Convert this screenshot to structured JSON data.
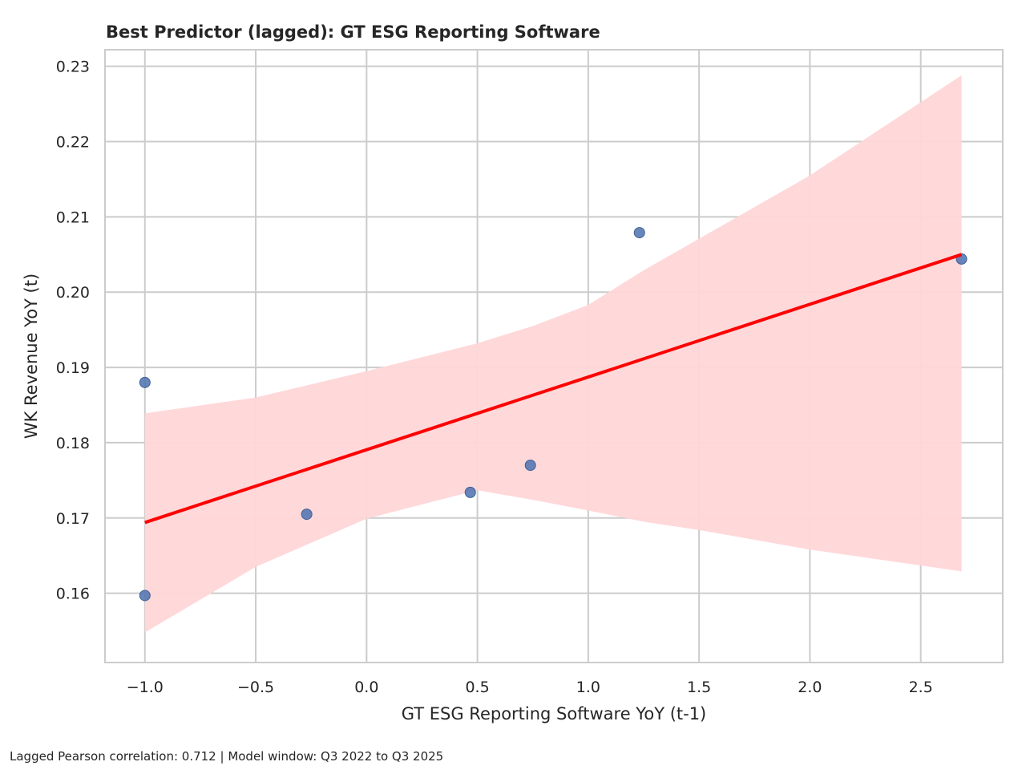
{
  "chart_data": {
    "type": "scatter",
    "title": "Best Predictor (lagged): GT ESG Reporting Software",
    "xlabel": "GT ESG Reporting Software YoY (t-1)",
    "ylabel": "WK Revenue YoY (t)",
    "xlim": [
      -1.18,
      2.87
    ],
    "ylim": [
      0.1508,
      0.2322
    ],
    "xticks": [
      -1.0,
      -0.5,
      0.0,
      0.5,
      1.0,
      1.5,
      2.0,
      2.5
    ],
    "xtick_labels": [
      "−1.0",
      "−0.5",
      "0.0",
      "0.5",
      "1.0",
      "1.5",
      "2.0",
      "2.5"
    ],
    "yticks": [
      0.16,
      0.17,
      0.18,
      0.19,
      0.2,
      0.21,
      0.22,
      0.23
    ],
    "ytick_labels": [
      "0.16",
      "0.17",
      "0.18",
      "0.19",
      "0.20",
      "0.21",
      "0.22",
      "0.23"
    ],
    "grid": true,
    "points": [
      {
        "x": -1.0,
        "y": 0.188
      },
      {
        "x": -1.0,
        "y": 0.1597
      },
      {
        "x": -0.27,
        "y": 0.1705
      },
      {
        "x": 0.468,
        "y": 0.1734
      },
      {
        "x": 0.739,
        "y": 0.177
      },
      {
        "x": 1.231,
        "y": 0.2079
      },
      {
        "x": 2.684,
        "y": 0.2044
      }
    ],
    "regression_line": {
      "x": [
        -1.0,
        2.684
      ],
      "y": [
        0.1694,
        0.205
      ]
    },
    "confidence_band": {
      "x": [
        -1.0,
        -0.5,
        0.0,
        0.5,
        0.75,
        1.0,
        1.25,
        1.5,
        2.0,
        2.684
      ],
      "upper": [
        0.1839,
        0.186,
        0.1895,
        0.1932,
        0.1955,
        0.1983,
        0.2029,
        0.2071,
        0.2155,
        0.2288
      ],
      "lower": [
        0.1548,
        0.1635,
        0.1699,
        0.1737,
        0.1724,
        0.171,
        0.1695,
        0.1684,
        0.1658,
        0.1629
      ]
    },
    "colors": {
      "points": "#4c72b0",
      "line": "#ff0000",
      "band": "#ffd6d8",
      "grid": "#cccccc"
    }
  },
  "footnote": "Lagged Pearson correlation: 0.712 | Model window: Q3 2022 to Q3 2025"
}
